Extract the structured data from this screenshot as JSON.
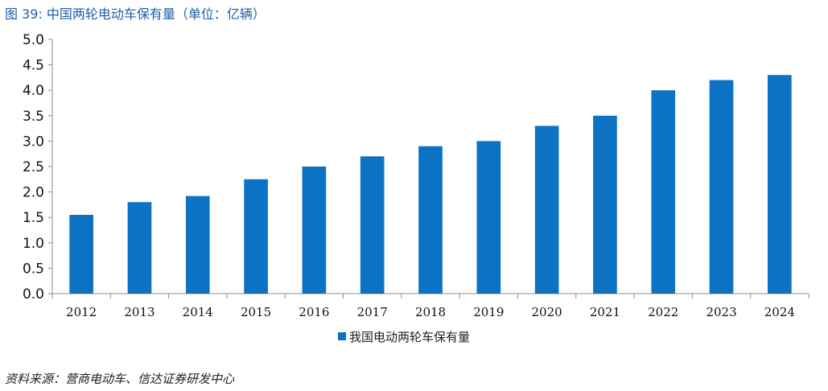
{
  "figure": {
    "title": "图 39:  中国两轮电动车保有量（单位：亿辆）",
    "source": "资料来源：营商电动车、信达证券研发中心"
  },
  "chart_data": {
    "type": "bar",
    "categories": [
      "2012",
      "2013",
      "2014",
      "2015",
      "2016",
      "2017",
      "2018",
      "2019",
      "2020",
      "2021",
      "2022",
      "2023",
      "2024"
    ],
    "series": [
      {
        "name": "我国电动两轮车保有量",
        "values": [
          1.55,
          1.8,
          1.92,
          2.25,
          2.5,
          2.7,
          2.9,
          3.0,
          3.3,
          3.5,
          4.0,
          4.2,
          4.3
        ]
      }
    ],
    "yticks": [
      "0.0",
      "0.5",
      "1.0",
      "1.5",
      "2.0",
      "2.5",
      "3.0",
      "3.5",
      "4.0",
      "4.5",
      "5.0"
    ],
    "ylim": [
      0,
      5
    ],
    "grid": false,
    "legend": "bottom-center",
    "colors": {
      "bar": "#0b72c4",
      "axis": "#8c8c8c"
    }
  }
}
